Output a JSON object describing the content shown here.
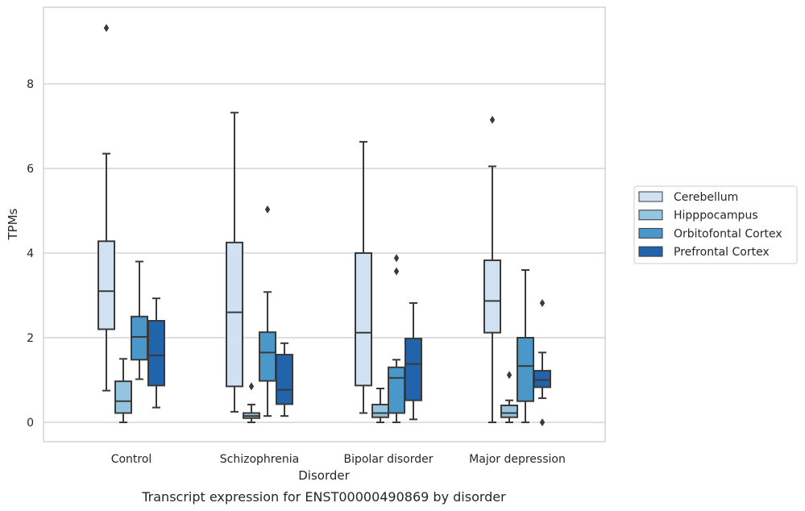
{
  "chart_data": {
    "type": "box",
    "title": "",
    "caption": "Transcript expression for ENST00000490869 by disorder",
    "xlabel": "Disorder",
    "ylabel": "TPMs",
    "ylim": [
      -0.45,
      9.85
    ],
    "yticks": [
      0,
      2,
      4,
      6,
      8
    ],
    "grid": "horizontal",
    "legend_position": "right",
    "categories": [
      "Control",
      "Schizophrenia",
      "Bipolar disorder",
      "Major depression"
    ],
    "series": [
      {
        "name": "Cerebellum",
        "color": "#d0e1f2",
        "boxes": [
          {
            "whislo": 0.75,
            "q1": 2.2,
            "med": 3.1,
            "q3": 4.28,
            "whishi": 6.35,
            "fliers": [
              9.32
            ]
          },
          {
            "whislo": 0.25,
            "q1": 0.85,
            "med": 2.6,
            "q3": 4.25,
            "whishi": 7.32,
            "fliers": []
          },
          {
            "whislo": 0.22,
            "q1": 0.87,
            "med": 2.12,
            "q3": 4.0,
            "whishi": 6.63,
            "fliers": []
          },
          {
            "whislo": 0.0,
            "q1": 2.12,
            "med": 2.87,
            "q3": 3.83,
            "whishi": 6.05,
            "fliers": [
              7.15
            ]
          }
        ]
      },
      {
        "name": "Hipppocampus",
        "color": "#94c4df",
        "boxes": [
          {
            "whislo": 0.0,
            "q1": 0.22,
            "med": 0.5,
            "q3": 0.97,
            "whishi": 1.5,
            "fliers": []
          },
          {
            "whislo": 0.0,
            "q1": 0.1,
            "med": 0.15,
            "q3": 0.22,
            "whishi": 0.42,
            "fliers": [
              0.85
            ]
          },
          {
            "whislo": 0.0,
            "q1": 0.12,
            "med": 0.22,
            "q3": 0.42,
            "whishi": 0.8,
            "fliers": []
          },
          {
            "whislo": 0.0,
            "q1": 0.12,
            "med": 0.22,
            "q3": 0.4,
            "whishi": 0.52,
            "fliers": [
              1.12
            ]
          }
        ]
      },
      {
        "name": "Orbitofontal Cortex",
        "color": "#4a98c9",
        "boxes": [
          {
            "whislo": 1.02,
            "q1": 1.48,
            "med": 2.02,
            "q3": 2.5,
            "whishi": 3.8,
            "fliers": []
          },
          {
            "whislo": 0.15,
            "q1": 0.98,
            "med": 1.65,
            "q3": 2.13,
            "whishi": 3.08,
            "fliers": [
              5.03
            ]
          },
          {
            "whislo": 0.0,
            "q1": 0.22,
            "med": 1.05,
            "q3": 1.3,
            "whishi": 1.48,
            "fliers": [
              3.57,
              3.88
            ]
          },
          {
            "whislo": 0.0,
            "q1": 0.5,
            "med": 1.33,
            "q3": 2.0,
            "whishi": 3.6,
            "fliers": []
          }
        ]
      },
      {
        "name": "Prefrontal Cortex",
        "color": "#2164ab",
        "boxes": [
          {
            "whislo": 0.35,
            "q1": 0.87,
            "med": 1.58,
            "q3": 2.4,
            "whishi": 2.93,
            "fliers": []
          },
          {
            "whislo": 0.15,
            "q1": 0.43,
            "med": 0.77,
            "q3": 1.6,
            "whishi": 1.87,
            "fliers": []
          },
          {
            "whislo": 0.07,
            "q1": 0.52,
            "med": 1.38,
            "q3": 1.98,
            "whishi": 2.82,
            "fliers": []
          },
          {
            "whislo": 0.57,
            "q1": 0.83,
            "med": 1.0,
            "q3": 1.22,
            "whishi": 1.65,
            "fliers": [
              0.0,
              2.82
            ]
          }
        ]
      }
    ]
  }
}
